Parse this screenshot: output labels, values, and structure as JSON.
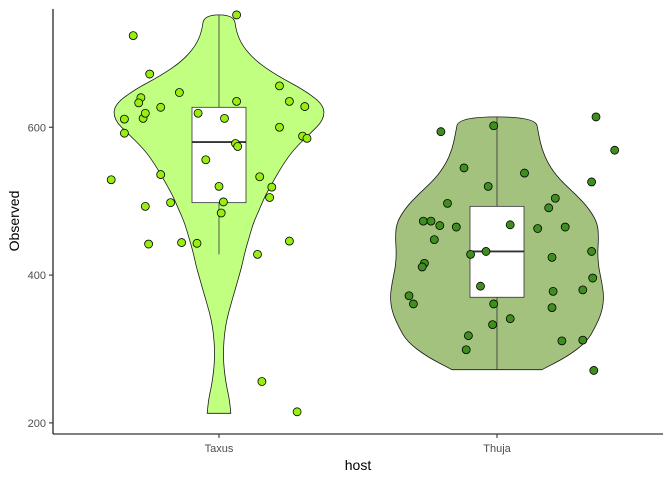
{
  "chart_data": {
    "type": "violin",
    "xlabel": "host",
    "ylabel": "Observed",
    "categories": [
      "Taxus",
      "Thuja"
    ],
    "ylim": [
      185,
      760
    ],
    "yticks": [
      200,
      400,
      600
    ],
    "grid": false,
    "colors": {
      "Taxus": {
        "fill": "#c0ff80",
        "point": "#99ee11"
      },
      "Thuja": {
        "fill": "#a3c27e",
        "point": "#3f8f1f"
      }
    },
    "series": [
      {
        "name": "Taxus",
        "violin_profile": [
          {
            "y": 213,
            "w": 0.11
          },
          {
            "y": 230,
            "w": 0.1
          },
          {
            "y": 250,
            "w": 0.07
          },
          {
            "y": 270,
            "w": 0.05
          },
          {
            "y": 290,
            "w": 0.04
          },
          {
            "y": 310,
            "w": 0.045
          },
          {
            "y": 330,
            "w": 0.06
          },
          {
            "y": 350,
            "w": 0.09
          },
          {
            "y": 370,
            "w": 0.13
          },
          {
            "y": 390,
            "w": 0.17
          },
          {
            "y": 410,
            "w": 0.21
          },
          {
            "y": 430,
            "w": 0.24
          },
          {
            "y": 450,
            "w": 0.28
          },
          {
            "y": 470,
            "w": 0.32
          },
          {
            "y": 490,
            "w": 0.38
          },
          {
            "y": 510,
            "w": 0.44
          },
          {
            "y": 530,
            "w": 0.52
          },
          {
            "y": 550,
            "w": 0.6
          },
          {
            "y": 570,
            "w": 0.7
          },
          {
            "y": 590,
            "w": 0.84
          },
          {
            "y": 610,
            "w": 0.98
          },
          {
            "y": 630,
            "w": 0.98
          },
          {
            "y": 650,
            "w": 0.8
          },
          {
            "y": 670,
            "w": 0.54
          },
          {
            "y": 690,
            "w": 0.34
          },
          {
            "y": 710,
            "w": 0.22
          },
          {
            "y": 730,
            "w": 0.16
          },
          {
            "y": 752,
            "w": 0.14
          }
        ],
        "box": {
          "q1": 498,
          "median": 580,
          "q3": 627,
          "whisker_low": 428,
          "whisker_high": 752
        },
        "points": [
          [
            -0.78,
            724
          ],
          [
            0.16,
            752
          ],
          [
            -0.63,
            672
          ],
          [
            -0.36,
            647
          ],
          [
            -0.71,
            640
          ],
          [
            -0.73,
            633
          ],
          [
            -0.86,
            611
          ],
          [
            -0.69,
            612
          ],
          [
            -0.67,
            619
          ],
          [
            -0.53,
            627
          ],
          [
            0.16,
            635
          ],
          [
            0.55,
            656
          ],
          [
            0.64,
            635
          ],
          [
            0.78,
            628
          ],
          [
            -0.19,
            619
          ],
          [
            0.05,
            612
          ],
          [
            0.55,
            600
          ],
          [
            0.76,
            588
          ],
          [
            0.8,
            585
          ],
          [
            0.15,
            578
          ],
          [
            0.17,
            574
          ],
          [
            -0.86,
            592
          ],
          [
            -0.53,
            536
          ],
          [
            -0.98,
            529
          ],
          [
            -0.12,
            556
          ],
          [
            0.37,
            533
          ],
          [
            0.48,
            519
          ],
          [
            0.46,
            505
          ],
          [
            0.0,
            520
          ],
          [
            -0.44,
            498
          ],
          [
            -0.67,
            493
          ],
          [
            0.04,
            499
          ],
          [
            0.02,
            484
          ],
          [
            -0.34,
            444
          ],
          [
            -0.2,
            443
          ],
          [
            -0.64,
            442
          ],
          [
            0.64,
            446
          ],
          [
            0.35,
            428
          ],
          [
            0.39,
            256
          ],
          [
            0.71,
            215
          ]
        ]
      },
      {
        "name": "Thuja",
        "violin_profile": [
          {
            "y": 272,
            "w": 0.42
          },
          {
            "y": 290,
            "w": 0.66
          },
          {
            "y": 310,
            "w": 0.84
          },
          {
            "y": 330,
            "w": 0.92
          },
          {
            "y": 350,
            "w": 0.98
          },
          {
            "y": 370,
            "w": 1.0
          },
          {
            "y": 390,
            "w": 0.98
          },
          {
            "y": 410,
            "w": 0.95
          },
          {
            "y": 430,
            "w": 0.94
          },
          {
            "y": 450,
            "w": 0.95
          },
          {
            "y": 470,
            "w": 0.94
          },
          {
            "y": 490,
            "w": 0.86
          },
          {
            "y": 510,
            "w": 0.73
          },
          {
            "y": 530,
            "w": 0.58
          },
          {
            "y": 550,
            "w": 0.48
          },
          {
            "y": 570,
            "w": 0.42
          },
          {
            "y": 590,
            "w": 0.39
          },
          {
            "y": 614,
            "w": 0.36
          }
        ],
        "box": {
          "q1": 370,
          "median": 432,
          "q3": 493,
          "whisker_low": 272,
          "whisker_high": 614
        },
        "points": [
          [
            -0.51,
            594
          ],
          [
            -0.03,
            602
          ],
          [
            0.9,
            614
          ],
          [
            1.07,
            569
          ],
          [
            0.86,
            526
          ],
          [
            0.53,
            504
          ],
          [
            -0.3,
            545
          ],
          [
            0.25,
            538
          ],
          [
            0.47,
            491
          ],
          [
            -0.45,
            497
          ],
          [
            -0.08,
            520
          ],
          [
            -0.67,
            473
          ],
          [
            -0.6,
            473
          ],
          [
            -0.52,
            467
          ],
          [
            -0.37,
            465
          ],
          [
            0.37,
            463
          ],
          [
            0.62,
            465
          ],
          [
            -0.57,
            448
          ],
          [
            0.12,
            468
          ],
          [
            -0.24,
            428
          ],
          [
            -0.1,
            432
          ],
          [
            0.86,
            432
          ],
          [
            0.5,
            424
          ],
          [
            -0.66,
            416
          ],
          [
            -0.68,
            411
          ],
          [
            0.87,
            396
          ],
          [
            0.78,
            380
          ],
          [
            0.51,
            378
          ],
          [
            -0.15,
            385
          ],
          [
            -0.8,
            372
          ],
          [
            -0.76,
            361
          ],
          [
            -0.03,
            361
          ],
          [
            0.5,
            356
          ],
          [
            0.12,
            341
          ],
          [
            -0.04,
            333
          ],
          [
            -0.26,
            318
          ],
          [
            0.59,
            311
          ],
          [
            0.78,
            312
          ],
          [
            -0.28,
            299
          ],
          [
            0.88,
            271
          ]
        ]
      }
    ]
  }
}
